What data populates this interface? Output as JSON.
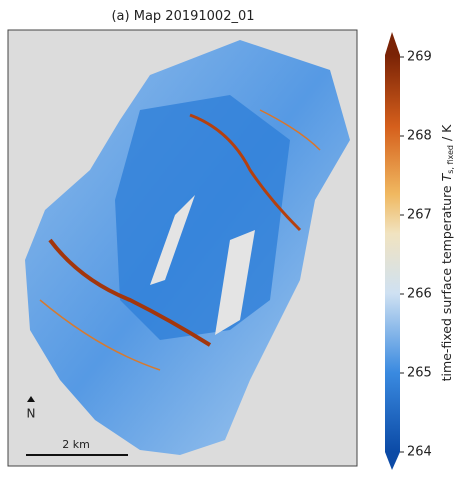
{
  "title": "(a) Map 20191002_01",
  "colorbar": {
    "label_prefix": "time-fixed surface temperature ",
    "label_symbol": "T",
    "label_subscript": "s, fixed",
    "label_suffix": " / K",
    "lim": [
      264,
      269
    ],
    "ticks": [
      264,
      265,
      266,
      267,
      268,
      269
    ]
  },
  "north_label": "N",
  "scale_label": "2 km"
}
